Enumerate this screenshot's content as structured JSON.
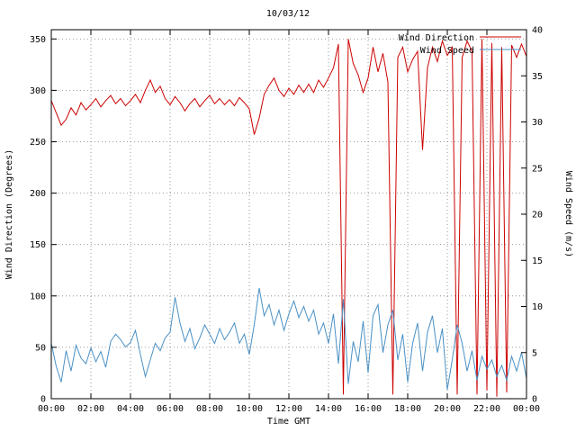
{
  "chart_data": {
    "type": "line",
    "title": "10/03/12",
    "xlabel": "Time GMT",
    "ylabel_left": "Wind Direction (Degrees)",
    "ylabel_right": "Wind Speed (m/s)",
    "x_unit": "hours",
    "x_range_hours": [
      0,
      24
    ],
    "x_step_hours": 0.25,
    "x_tick_labels": [
      "00:00",
      "02:00",
      "04:00",
      "06:00",
      "08:00",
      "10:00",
      "12:00",
      "14:00",
      "16:00",
      "18:00",
      "20:00",
      "22:00",
      "00:00"
    ],
    "y_left_ticks": [
      0,
      50,
      100,
      150,
      200,
      250,
      300,
      350
    ],
    "y_left_range": [
      0,
      359
    ],
    "y_right_ticks": [
      0,
      5,
      10,
      15,
      20,
      25,
      30,
      35,
      40
    ],
    "y_right_range": [
      0,
      40
    ],
    "grid": true,
    "grid_color": "#808080",
    "legend_position": "top-right-inside",
    "series": [
      {
        "name": "Wind Direction",
        "axis": "left",
        "color": "#cc0000",
        "values": [
          290,
          278,
          266,
          272,
          283,
          276,
          288,
          281,
          286,
          292,
          284,
          290,
          295,
          287,
          292,
          285,
          290,
          296,
          288,
          300,
          310,
          298,
          304,
          292,
          286,
          294,
          288,
          280,
          287,
          292,
          284,
          290,
          295,
          287,
          292,
          286,
          291,
          285,
          293,
          288,
          282,
          257,
          273,
          296,
          305,
          312,
          300,
          294,
          302,
          296,
          305,
          298,
          306,
          298,
          310,
          303,
          312,
          322,
          345,
          4,
          350,
          326,
          315,
          298,
          312,
          342,
          318,
          336,
          308,
          4,
          332,
          342,
          318,
          330,
          338,
          242,
          322,
          342,
          328,
          348,
          334,
          342,
          4,
          332,
          348,
          338,
          4,
          350,
          8,
          346,
          2,
          342,
          6,
          344,
          332,
          345,
          333
        ]
      },
      {
        "name": "Wind Speed",
        "axis": "right",
        "color": "#4a90c4",
        "values": [
          6,
          3.5,
          1.8,
          5.2,
          3,
          5.8,
          4.4,
          3.8,
          5.5,
          4,
          5.1,
          3.4,
          6.2,
          7,
          6.4,
          5.6,
          6.1,
          7.4,
          4.8,
          2.4,
          4.2,
          6,
          5.2,
          6.6,
          7.2,
          11,
          8.2,
          6.2,
          7.6,
          5.4,
          6.6,
          8,
          7,
          6,
          7.6,
          6.4,
          7.2,
          8.2,
          6,
          7,
          4.8,
          8,
          12,
          9,
          10.2,
          8,
          9.6,
          7.4,
          9.2,
          10.6,
          8.8,
          10,
          8.4,
          9.6,
          7,
          8.2,
          6,
          9.2,
          3.8,
          10.8,
          1.6,
          6.2,
          4,
          8.4,
          2.8,
          9,
          10.2,
          5,
          8,
          9.6,
          4.2,
          7,
          1.8,
          6,
          8.2,
          3,
          7.2,
          9,
          5,
          7.6,
          1,
          4.2,
          8,
          6,
          3,
          5.2,
          2,
          4.6,
          3.2,
          4.2,
          2.4,
          3.6,
          2,
          4.6,
          3,
          5,
          2.2
        ]
      }
    ]
  }
}
